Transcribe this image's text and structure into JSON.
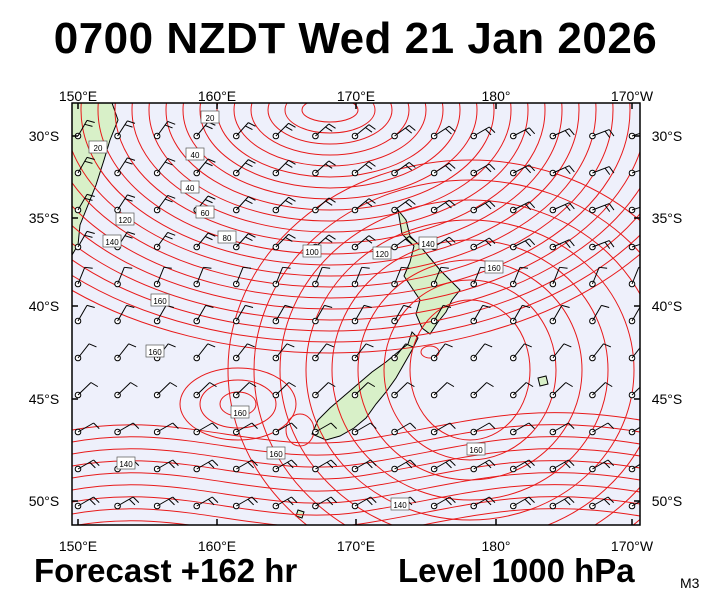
{
  "header": {
    "title": "0700 NZDT Wed 21 Jan 2026"
  },
  "footer": {
    "forecast": "Forecast +162 hr",
    "level": "Level 1000 hPa",
    "model": "M3"
  },
  "map": {
    "lon_labels": [
      "150°E",
      "160°E",
      "170°E",
      "180°",
      "170°W"
    ],
    "lat_labels": [
      "30°S",
      "35°S",
      "40°S",
      "45°S",
      "50°S"
    ],
    "contour_labels": [
      "20",
      "40",
      "60",
      "80",
      "100",
      "120",
      "140",
      "160"
    ],
    "colors": {
      "contour": "#e8191a",
      "ocean": "#eef0fb",
      "land": "#d8f0c8",
      "coast": "#000000",
      "barb": "#000000"
    }
  }
}
